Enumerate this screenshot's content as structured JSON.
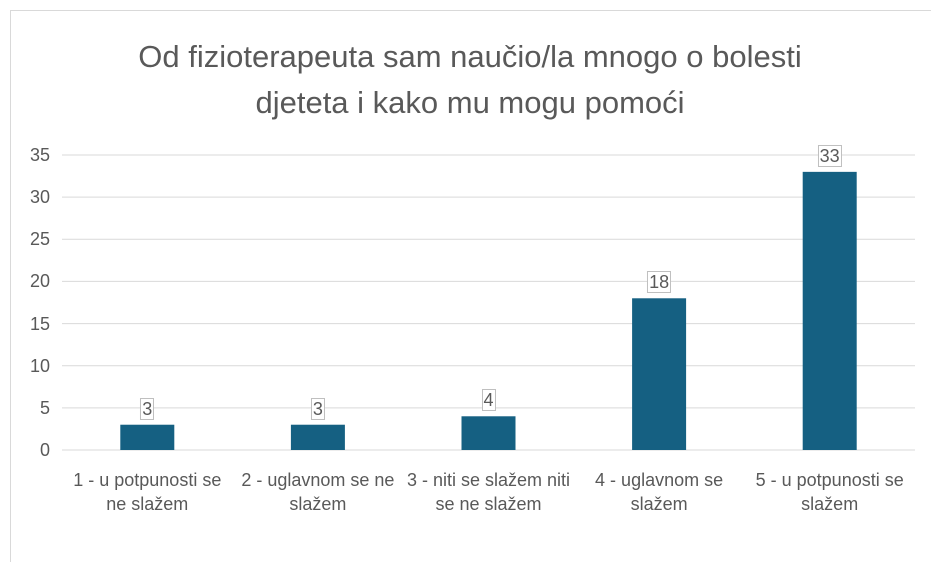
{
  "chart_data": {
    "type": "bar",
    "title": "Od fizioterapeuta sam naučio/la mnogo o bolesti djeteta i kako mu mogu pomoći",
    "categories": [
      "1 - u potpunosti se ne slažem",
      "2 - uglavnom se ne slažem",
      "3 - niti se slažem niti se ne slažem",
      "4 - uglavnom se slažem",
      "5 - u potpunosti se slažem"
    ],
    "values": [
      3,
      3,
      4,
      18,
      33
    ],
    "color": "#156082",
    "ylim": [
      0,
      35
    ],
    "yticks": [
      0,
      5,
      10,
      15,
      20,
      25,
      30,
      35
    ],
    "grid": true
  }
}
